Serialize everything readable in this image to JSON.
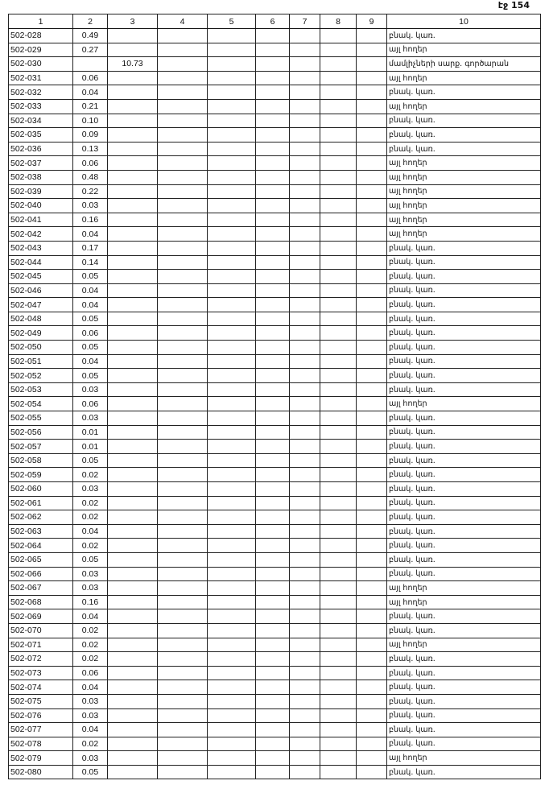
{
  "page_label": "էջ 154",
  "headers": [
    "1",
    "2",
    "3",
    "4",
    "5",
    "6",
    "7",
    "8",
    "9",
    "10"
  ],
  "rows": [
    {
      "id": "502-028",
      "c2": "0.49",
      "c3": "",
      "c10": "բնակ. կառ."
    },
    {
      "id": "502-029",
      "c2": "0.27",
      "c3": "",
      "c10": "այլ հողեր"
    },
    {
      "id": "502-030",
      "c2": "",
      "c3": "10.73",
      "c10": "մամլիչների սարք. գործարան"
    },
    {
      "id": "502-031",
      "c2": "0.06",
      "c3": "",
      "c10": "այլ հողեր"
    },
    {
      "id": "502-032",
      "c2": "0.04",
      "c3": "",
      "c10": "բնակ. կառ."
    },
    {
      "id": "502-033",
      "c2": "0.21",
      "c3": "",
      "c10": "այլ հողեր"
    },
    {
      "id": "502-034",
      "c2": "0.10",
      "c3": "",
      "c10": "բնակ. կառ."
    },
    {
      "id": "502-035",
      "c2": "0.09",
      "c3": "",
      "c10": "բնակ. կառ."
    },
    {
      "id": "502-036",
      "c2": "0.13",
      "c3": "",
      "c10": "բնակ. կառ."
    },
    {
      "id": "502-037",
      "c2": "0.06",
      "c3": "",
      "c10": "այլ հողեր"
    },
    {
      "id": "502-038",
      "c2": "0.48",
      "c3": "",
      "c10": "այլ հողեր"
    },
    {
      "id": "502-039",
      "c2": "0.22",
      "c3": "",
      "c10": "այլ հողեր"
    },
    {
      "id": "502-040",
      "c2": "0.03",
      "c3": "",
      "c10": "այլ հողեր"
    },
    {
      "id": "502-041",
      "c2": "0.16",
      "c3": "",
      "c10": "այլ հողեր"
    },
    {
      "id": "502-042",
      "c2": "0.04",
      "c3": "",
      "c10": "այլ հողեր"
    },
    {
      "id": "502-043",
      "c2": "0.17",
      "c3": "",
      "c10": "բնակ. կառ."
    },
    {
      "id": "502-044",
      "c2": "0.14",
      "c3": "",
      "c10": "բնակ. կառ."
    },
    {
      "id": "502-045",
      "c2": "0.05",
      "c3": "",
      "c10": "բնակ. կառ."
    },
    {
      "id": "502-046",
      "c2": "0.04",
      "c3": "",
      "c10": "բնակ. կառ."
    },
    {
      "id": "502-047",
      "c2": "0.04",
      "c3": "",
      "c10": "բնակ. կառ."
    },
    {
      "id": "502-048",
      "c2": "0.05",
      "c3": "",
      "c10": "բնակ. կառ."
    },
    {
      "id": "502-049",
      "c2": "0.06",
      "c3": "",
      "c10": "բնակ. կառ."
    },
    {
      "id": "502-050",
      "c2": "0.05",
      "c3": "",
      "c10": "բնակ. կառ."
    },
    {
      "id": "502-051",
      "c2": "0.04",
      "c3": "",
      "c10": "բնակ. կառ."
    },
    {
      "id": "502-052",
      "c2": "0.05",
      "c3": "",
      "c10": "բնակ. կառ."
    },
    {
      "id": "502-053",
      "c2": "0.03",
      "c3": "",
      "c10": "բնակ. կառ."
    },
    {
      "id": "502-054",
      "c2": "0.06",
      "c3": "",
      "c10": "այլ հողեր"
    },
    {
      "id": "502-055",
      "c2": "0.03",
      "c3": "",
      "c10": "բնակ. կառ."
    },
    {
      "id": "502-056",
      "c2": "0.01",
      "c3": "",
      "c10": "բնակ. կառ."
    },
    {
      "id": "502-057",
      "c2": "0.01",
      "c3": "",
      "c10": "բնակ. կառ."
    },
    {
      "id": "502-058",
      "c2": "0.05",
      "c3": "",
      "c10": "բնակ. կառ."
    },
    {
      "id": "502-059",
      "c2": "0.02",
      "c3": "",
      "c10": "բնակ. կառ."
    },
    {
      "id": "502-060",
      "c2": "0.03",
      "c3": "",
      "c10": "բնակ. կառ."
    },
    {
      "id": "502-061",
      "c2": "0.02",
      "c3": "",
      "c10": "բնակ. կառ."
    },
    {
      "id": "502-062",
      "c2": "0.02",
      "c3": "",
      "c10": "բնակ. կառ."
    },
    {
      "id": "502-063",
      "c2": "0.04",
      "c3": "",
      "c10": "բնակ. կառ."
    },
    {
      "id": "502-064",
      "c2": "0.02",
      "c3": "",
      "c10": "բնակ. կառ."
    },
    {
      "id": "502-065",
      "c2": "0.05",
      "c3": "",
      "c10": "բնակ. կառ."
    },
    {
      "id": "502-066",
      "c2": "0.03",
      "c3": "",
      "c10": "բնակ. կառ."
    },
    {
      "id": "502-067",
      "c2": "0.03",
      "c3": "",
      "c10": "այլ հողեր"
    },
    {
      "id": "502-068",
      "c2": "0.16",
      "c3": "",
      "c10": "այլ հողեր"
    },
    {
      "id": "502-069",
      "c2": "0.04",
      "c3": "",
      "c10": "բնակ. կառ."
    },
    {
      "id": "502-070",
      "c2": "0.02",
      "c3": "",
      "c10": "բնակ. կառ."
    },
    {
      "id": "502-071",
      "c2": "0.02",
      "c3": "",
      "c10": "այլ հողեր"
    },
    {
      "id": "502-072",
      "c2": "0.02",
      "c3": "",
      "c10": "բնակ. կառ."
    },
    {
      "id": "502-073",
      "c2": "0.06",
      "c3": "",
      "c10": "բնակ. կառ."
    },
    {
      "id": "502-074",
      "c2": "0.04",
      "c3": "",
      "c10": "բնակ. կառ."
    },
    {
      "id": "502-075",
      "c2": "0.03",
      "c3": "",
      "c10": "բնակ. կառ."
    },
    {
      "id": "502-076",
      "c2": "0.03",
      "c3": "",
      "c10": "բնակ. կառ."
    },
    {
      "id": "502-077",
      "c2": "0.04",
      "c3": "",
      "c10": "բնակ. կառ."
    },
    {
      "id": "502-078",
      "c2": "0.02",
      "c3": "",
      "c10": "բնակ. կառ."
    },
    {
      "id": "502-079",
      "c2": "0.03",
      "c3": "",
      "c10": "այլ հողեր"
    },
    {
      "id": "502-080",
      "c2": "0.05",
      "c3": "",
      "c10": "բնակ. կառ."
    }
  ]
}
